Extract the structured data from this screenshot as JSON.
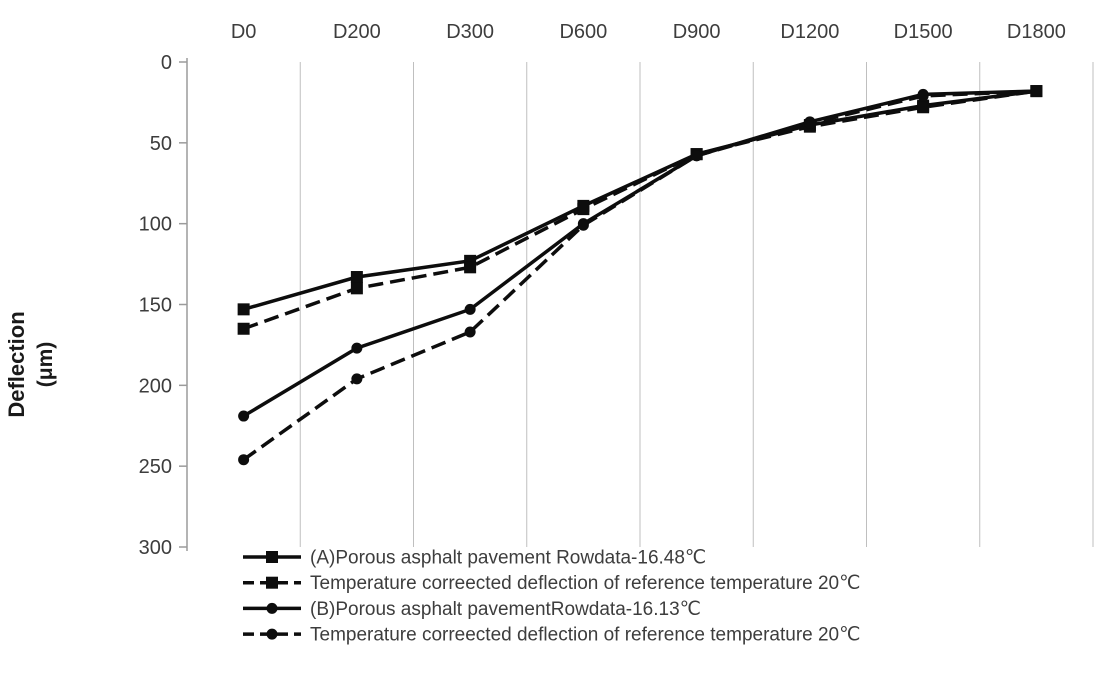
{
  "colors": {
    "series": "#0d0d0d",
    "gridline": "#bfbfbf",
    "axis": "#9b9b9b",
    "tick_text": "#3d3d3d",
    "legend_text": "#3d3d3d",
    "axis_title": "#1a1a1a"
  },
  "chart_data": {
    "type": "line",
    "title": "",
    "xlabel": "",
    "ylabel_line1": "Deflection",
    "ylabel_line2": "(μm)",
    "ylim": [
      0,
      300
    ],
    "y_axis_reversed": true,
    "y_ticks": [
      0,
      50,
      100,
      150,
      200,
      250,
      300
    ],
    "grid": "vertical-only",
    "legend_position": "bottom-left",
    "categories": [
      "D0",
      "D200",
      "D300",
      "D600",
      "D900",
      "D1200",
      "D1500",
      "D1800"
    ],
    "series": [
      {
        "name": "(A)Porous asphalt pavement Rowdata-16.48℃",
        "marker": "square",
        "line": "solid",
        "values": [
          153,
          133,
          123,
          89,
          57,
          39,
          27,
          18
        ]
      },
      {
        "name": "Temperature correected deflection of reference temperature 20℃",
        "marker": "square",
        "line": "dashed",
        "values": [
          165,
          140,
          127,
          91,
          57,
          40,
          28,
          18
        ]
      },
      {
        "name": "(B)Porous asphalt pavementRowdata-16.13℃",
        "marker": "circle",
        "line": "solid",
        "values": [
          219,
          177,
          153,
          100,
          58,
          37,
          20,
          18
        ]
      },
      {
        "name": "Temperature correected deflection of reference temperature 20℃",
        "marker": "circle",
        "line": "dashed",
        "values": [
          246,
          196,
          167,
          101,
          58,
          38,
          21,
          18
        ]
      }
    ]
  }
}
